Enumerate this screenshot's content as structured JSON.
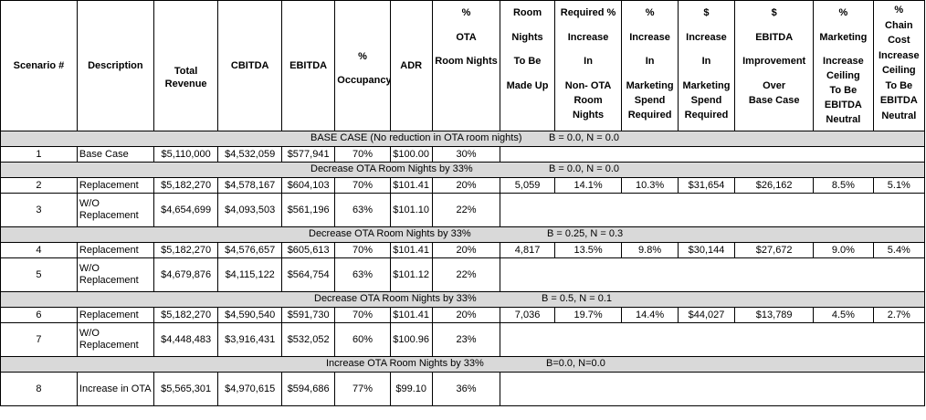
{
  "headers": {
    "scenario": "Scenario #",
    "description": "Description",
    "total_revenue": [
      "Total",
      "Revenue"
    ],
    "cbitda": "CBITDA",
    "ebitda": "EBITDA",
    "occupancy": [
      "%",
      "Occupancy"
    ],
    "adr": "ADR",
    "ota_room_nights": [
      "%",
      "OTA",
      "Room Nights"
    ],
    "room_nights_made_up": [
      "Room",
      "Nights",
      "To Be",
      "Made Up"
    ],
    "required_pct_increase": [
      "Required %",
      "Increase",
      "In",
      "Non- OTA",
      "Room",
      "Nights"
    ],
    "pct_increase_marketing": [
      "%",
      "Increase",
      "In",
      "Marketing",
      "Spend",
      "Required"
    ],
    "dollar_increase_marketing": [
      "$",
      "Increase",
      "In",
      "Marketing",
      "Spend",
      "Required"
    ],
    "ebitda_improvement": [
      "$",
      "EBITDA",
      "Improvement",
      "Over",
      "Base Case"
    ],
    "marketing_ceiling": [
      "%",
      "Marketing",
      "Increase",
      "Ceiling",
      "To Be",
      "EBITDA",
      "Neutral"
    ],
    "chain_cost_ceiling": [
      "%",
      "Chain",
      "Cost",
      "Increase",
      "Ceiling",
      "To Be",
      "EBITDA",
      "Neutral"
    ]
  },
  "sections": [
    {
      "title": "BASE CASE (No reduction in OTA room nights)",
      "params": "B = 0.0, N = 0.0",
      "rows": [
        {
          "scenario": "1",
          "description": "Base Case",
          "total_revenue": "$5,110,000",
          "cbitda": "$4,532,059",
          "ebitda": "$577,941",
          "occupancy": "70%",
          "adr": "$100.00",
          "ota": "30%"
        }
      ]
    },
    {
      "title": "Decrease OTA Room Nights by 33%",
      "params": "B = 0.0, N = 0.0",
      "rows": [
        {
          "scenario": "2",
          "description": "Replacement",
          "total_revenue": "$5,182,270",
          "cbitda": "$4,578,167",
          "ebitda": "$604,103",
          "occupancy": "70%",
          "adr": "$101.41",
          "ota": "20%",
          "room_nights": "5,059",
          "req_increase": "14.1%",
          "mkt_pct": "10.3%",
          "mkt_dollar": "$31,654",
          "ebitda_impr": "$26,162",
          "mkt_ceiling": "8.5%",
          "chain_ceiling": "5.1%"
        },
        {
          "scenario": "3",
          "description": "W/O Replacement",
          "total_revenue": "$4,654,699",
          "cbitda": "$4,093,503",
          "ebitda": "$561,196",
          "occupancy": "63%",
          "adr": "$101.10",
          "ota": "22%"
        }
      ]
    },
    {
      "title": "Decrease OTA Room Nights by 33%",
      "params": "B = 0.25, N = 0.3",
      "rows": [
        {
          "scenario": "4",
          "description": "Replacement",
          "total_revenue": "$5,182,270",
          "cbitda": "$4,576,657",
          "ebitda": "$605,613",
          "occupancy": "70%",
          "adr": "$101.41",
          "ota": "20%",
          "room_nights": "4,817",
          "req_increase": "13.5%",
          "mkt_pct": "9.8%",
          "mkt_dollar": "$30,144",
          "ebitda_impr": "$27,672",
          "mkt_ceiling": "9.0%",
          "chain_ceiling": "5.4%"
        },
        {
          "scenario": "5",
          "description": "W/O Replacement",
          "total_revenue": "$4,679,876",
          "cbitda": "$4,115,122",
          "ebitda": "$564,754",
          "occupancy": "63%",
          "adr": "$101.12",
          "ota": "22%"
        }
      ]
    },
    {
      "title": "Decrease OTA Room Nights by 33%",
      "params": "B = 0.5, N = 0.1",
      "rows": [
        {
          "scenario": "6",
          "description": "Replacement",
          "total_revenue": "$5,182,270",
          "cbitda": "$4,590,540",
          "ebitda": "$591,730",
          "occupancy": "70%",
          "adr": "$101.41",
          "ota": "20%",
          "room_nights": "7,036",
          "req_increase": "19.7%",
          "mkt_pct": "14.4%",
          "mkt_dollar": "$44,027",
          "ebitda_impr": "$13,789",
          "mkt_ceiling": "4.5%",
          "chain_ceiling": "2.7%"
        },
        {
          "scenario": "7",
          "description": "W/O Replacement",
          "total_revenue": "$4,448,483",
          "cbitda": "$3,916,431",
          "ebitda": "$532,052",
          "occupancy": "60%",
          "adr": "$100.96",
          "ota": "23%"
        }
      ]
    },
    {
      "title": "Increase OTA Room Nights by 33%",
      "params": "B=0.0, N=0.0",
      "rows": [
        {
          "scenario": "8",
          "description": "Increase in OTA",
          "total_revenue": "$5,565,301",
          "cbitda": "$4,970,615",
          "ebitda": "$594,686",
          "occupancy": "77%",
          "adr": "$99.10",
          "ota": "36%"
        }
      ]
    }
  ]
}
